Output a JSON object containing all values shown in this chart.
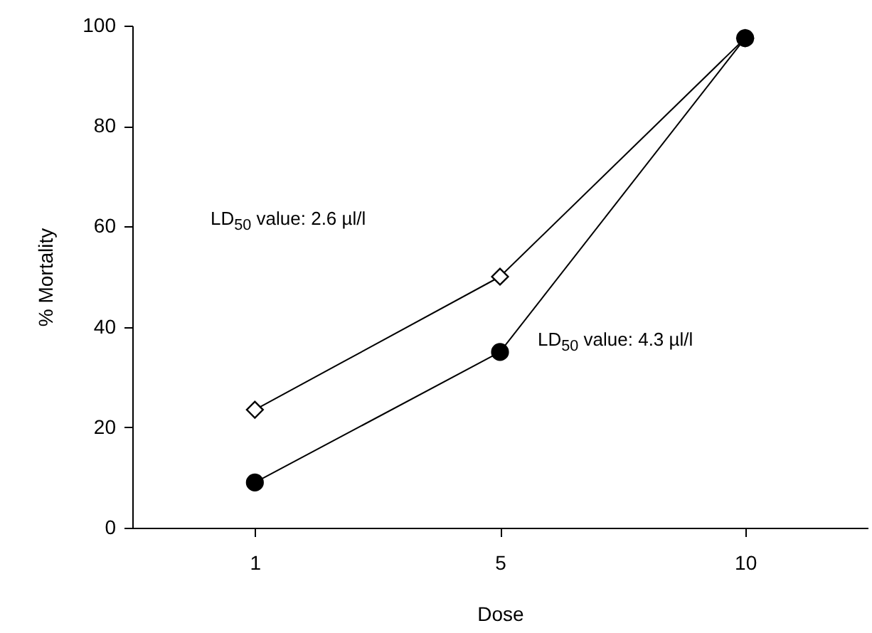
{
  "chart_data": {
    "type": "line",
    "xlabel": "Dose",
    "ylabel": "% Mortality",
    "categories": [
      "1",
      "5",
      "10"
    ],
    "series": [
      {
        "color": "#000000",
        "marker": "diamond",
        "values": [
          23.5,
          50,
          97.5
        ]
      },
      {
        "color": "#000000",
        "marker": "circle",
        "values": [
          9,
          35,
          97.5
        ]
      }
    ],
    "ylim": [
      0,
      100
    ],
    "yticks": [
      0,
      20,
      40,
      60,
      80,
      100
    ],
    "grid": false,
    "annotations": [
      "LD$_{50}$ value: 2.6 µl/l",
      "LD$_{50}$ value: 4.3 µl/l"
    ]
  }
}
